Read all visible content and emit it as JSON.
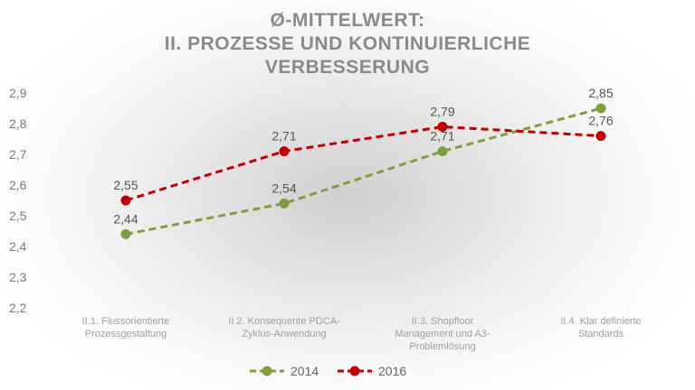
{
  "chart_data": {
    "type": "line",
    "title_lines": [
      "Ø-MITTELWERT:",
      "II. PROZESSE UND KONTINUIERLICHE",
      "VERBESSERUNG"
    ],
    "categories": [
      [
        "II.1. Flussorientierte",
        "Prozessgestaltung"
      ],
      [
        "II.2. Konsequente PDCA-",
        "Zyklus-Anwendung"
      ],
      [
        "II.3. Shopfloor",
        "Management und A3-",
        "Problemlösung"
      ],
      [
        "II.4. Klar definierte",
        "Standards"
      ]
    ],
    "series": [
      {
        "name": "2014",
        "values": [
          2.44,
          2.54,
          2.71,
          2.85
        ],
        "color": "#7f9f3f",
        "labels": [
          "2,44",
          "2,54",
          "2,71",
          "2,85"
        ]
      },
      {
        "name": "2016",
        "values": [
          2.55,
          2.71,
          2.79,
          2.76
        ],
        "color": "#c00000",
        "labels": [
          "2,55",
          "2,71",
          "2,79",
          "2,76"
        ]
      }
    ],
    "yticks": [
      "2,2",
      "2,3",
      "2,4",
      "2,5",
      "2,6",
      "2,7",
      "2,8",
      "2,9"
    ],
    "ylim": [
      2.2,
      2.9
    ],
    "line_style": "dashed",
    "grid": false,
    "legend_position": "bottom"
  }
}
